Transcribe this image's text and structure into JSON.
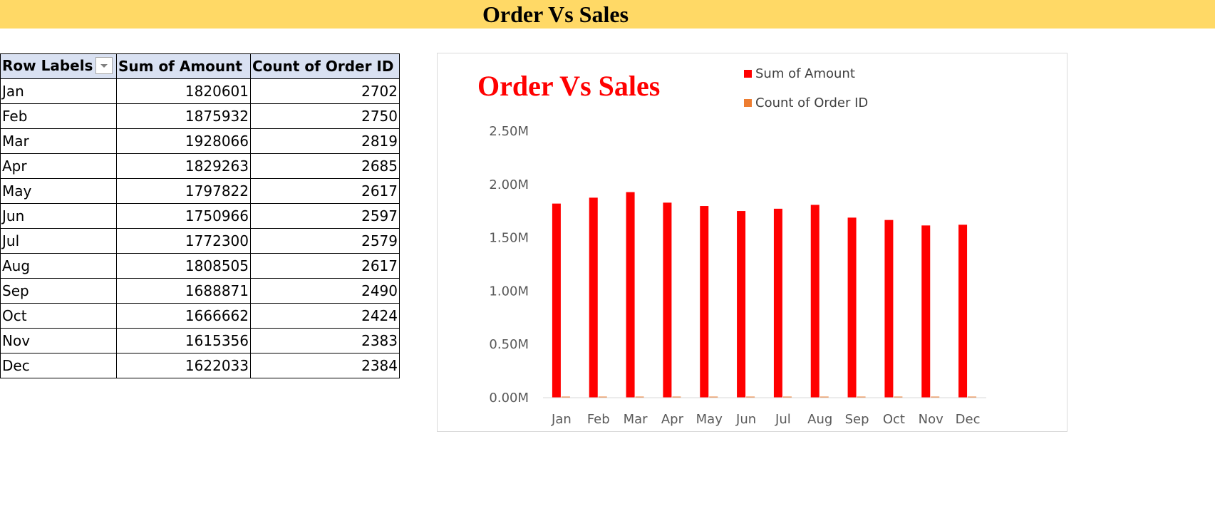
{
  "banner_title": "Order Vs Sales",
  "pivot": {
    "headers": [
      "Row Labels",
      "Sum of Amount",
      "Count of Order ID"
    ],
    "rows": [
      [
        "Jan",
        "1820601",
        "2702"
      ],
      [
        "Feb",
        "1875932",
        "2750"
      ],
      [
        "Mar",
        "1928066",
        "2819"
      ],
      [
        "Apr",
        "1829263",
        "2685"
      ],
      [
        "May",
        "1797822",
        "2617"
      ],
      [
        "Jun",
        "1750966",
        "2597"
      ],
      [
        "Jul",
        "1772300",
        "2579"
      ],
      [
        "Aug",
        "1808505",
        "2617"
      ],
      [
        "Sep",
        "1688871",
        "2490"
      ],
      [
        "Oct",
        "1666662",
        "2424"
      ],
      [
        "Nov",
        "1615356",
        "2383"
      ],
      [
        "Dec",
        "1622033",
        "2384"
      ]
    ]
  },
  "chart_data": {
    "type": "bar",
    "title": "Order Vs Sales",
    "categories": [
      "Jan",
      "Feb",
      "Mar",
      "Apr",
      "May",
      "Jun",
      "Jul",
      "Aug",
      "Sep",
      "Oct",
      "Nov",
      "Dec"
    ],
    "series": [
      {
        "name": "Sum of Amount",
        "color": "#FF0000",
        "values": [
          1820601,
          1875932,
          1928066,
          1829263,
          1797822,
          1750966,
          1772300,
          1808505,
          1688871,
          1666662,
          1615356,
          1622033
        ]
      },
      {
        "name": "Count of Order ID",
        "color": "#ED7D31",
        "values": [
          2702,
          2750,
          2819,
          2685,
          2617,
          2597,
          2579,
          2617,
          2490,
          2424,
          2383,
          2384
        ]
      }
    ],
    "ylim": [
      0,
      2500000
    ],
    "yticks": [
      "0.00M",
      "0.50M",
      "1.00M",
      "1.50M",
      "2.00M",
      "2.50M"
    ],
    "legend_position": "top-right",
    "grid": false
  }
}
